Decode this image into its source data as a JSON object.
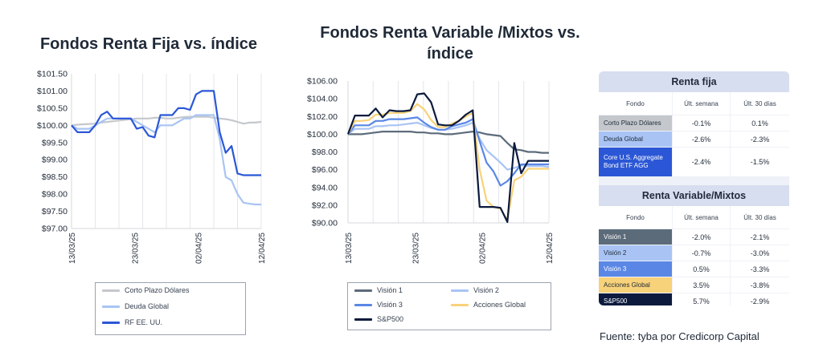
{
  "chart_data": [
    {
      "type": "line",
      "title": "Fondos Renta Fija vs. índice",
      "ylim": [
        97.0,
        101.5
      ],
      "yticks": [
        "$101.50",
        "$101.00",
        "$100.50",
        "$100.00",
        "$99.50",
        "$99.00",
        "$98.50",
        "$98.00",
        "$97.50",
        "$97.00"
      ],
      "xticks": [
        "13/03/25",
        "23/03/25",
        "02/04/25",
        "12/04/25"
      ],
      "grid": "vertical",
      "legend_position": "bottom",
      "series": [
        {
          "name": "Corto Plazo Dólares",
          "color": "#c4c8cd",
          "values": [
            100.0,
            100.02,
            100.03,
            100.04,
            100.05,
            100.08,
            100.1,
            100.12,
            100.14,
            100.16,
            100.18,
            100.2,
            100.2,
            100.2,
            100.22,
            100.22,
            100.2,
            100.2,
            100.22,
            100.24,
            100.25,
            100.25,
            100.25,
            100.25,
            100.22,
            100.2,
            100.18,
            100.15,
            100.1,
            100.05,
            100.08,
            100.08,
            100.1
          ]
        },
        {
          "name": "Deuda Global",
          "color": "#a9c4f4",
          "values": [
            100.0,
            99.9,
            99.9,
            99.9,
            100.0,
            100.1,
            100.2,
            100.2,
            100.2,
            100.2,
            100.2,
            100.1,
            100.0,
            99.9,
            99.8,
            100.0,
            100.0,
            100.0,
            100.1,
            100.2,
            100.2,
            100.3,
            100.3,
            100.3,
            100.3,
            99.6,
            98.5,
            98.4,
            98.0,
            97.75,
            97.72,
            97.7,
            97.7
          ]
        },
        {
          "name": "RF EE. UU.",
          "color": "#2b57d6",
          "values": [
            100.0,
            99.8,
            99.8,
            99.8,
            100.0,
            100.3,
            100.4,
            100.2,
            100.2,
            100.2,
            100.2,
            99.9,
            99.95,
            99.7,
            99.65,
            100.3,
            100.3,
            100.3,
            100.5,
            100.5,
            100.45,
            100.9,
            101.0,
            101.0,
            101.0,
            99.8,
            99.2,
            99.4,
            98.6,
            98.55,
            98.55,
            98.55,
            98.55
          ]
        }
      ]
    },
    {
      "type": "line",
      "title": "Fondos Renta Variable /Mixtos vs. índice",
      "ylim": [
        90.0,
        106.0
      ],
      "yticks": [
        "$106.00",
        "$104.00",
        "$102.00",
        "$100.00",
        "$98.00",
        "$96.00",
        "$94.00",
        "$92.00",
        "$90.00"
      ],
      "xticks": [
        "13/03/25",
        "23/03/25",
        "02/04/25",
        "12/04/25"
      ],
      "grid": "vertical",
      "legend_position": "bottom",
      "series": [
        {
          "name": "Visión 1",
          "color": "#5c6b7a",
          "values": [
            100.0,
            100.0,
            100.0,
            100.1,
            100.2,
            100.3,
            100.3,
            100.3,
            100.3,
            100.3,
            100.2,
            100.2,
            100.1,
            100.1,
            100.0,
            100.0,
            100.1,
            100.2,
            100.3,
            100.2,
            100.0,
            99.9,
            99.8,
            99.0,
            98.3,
            98.2,
            98.0,
            98.0,
            97.9,
            97.9
          ]
        },
        {
          "name": "Visión 2",
          "color": "#a9c4f4",
          "values": [
            100.0,
            100.6,
            100.6,
            100.6,
            100.9,
            100.9,
            101.0,
            101.0,
            101.1,
            101.2,
            101.3,
            101.0,
            100.7,
            100.5,
            100.5,
            100.6,
            100.8,
            101.0,
            101.3,
            99.5,
            98.2,
            97.5,
            96.8,
            96.0,
            96.2,
            96.5,
            96.4,
            96.4,
            96.4,
            96.3
          ]
        },
        {
          "name": "Visión 3",
          "color": "#5a87e6",
          "values": [
            100.0,
            101.0,
            101.0,
            101.0,
            101.5,
            101.5,
            101.7,
            101.7,
            101.7,
            101.8,
            101.9,
            101.3,
            100.8,
            100.5,
            100.5,
            100.9,
            101.1,
            101.3,
            101.7,
            99.2,
            96.8,
            95.8,
            94.2,
            94.7,
            95.6,
            96.6,
            96.6,
            96.6,
            96.6,
            96.6
          ]
        },
        {
          "name": "Acciones Global",
          "color": "#f8d27a",
          "values": [
            100.0,
            101.5,
            101.5,
            101.6,
            102.2,
            102.2,
            102.4,
            102.4,
            102.4,
            102.6,
            103.4,
            102.8,
            101.6,
            100.8,
            100.8,
            101.2,
            101.5,
            102.0,
            102.4,
            96.0,
            92.5,
            91.8,
            91.6,
            90.3,
            94.8,
            95.2,
            96.1,
            96.1,
            96.1,
            96.1
          ]
        },
        {
          "name": "S&P500",
          "color": "#0b1a3d",
          "values": [
            100.0,
            102.1,
            102.1,
            102.1,
            102.9,
            101.9,
            102.7,
            102.6,
            102.6,
            102.7,
            104.5,
            104.6,
            103.6,
            101.1,
            101.0,
            101.0,
            101.5,
            102.2,
            102.7,
            91.8,
            91.8,
            91.8,
            91.7,
            90.1,
            99.0,
            95.6,
            97.0,
            97.0,
            97.0,
            97.0
          ]
        }
      ]
    }
  ],
  "table": {
    "renta_fija_header": "Renta fija",
    "renta_variable_header": "Renta Variable/Mixtos",
    "col_fondo": "Fondo",
    "col_week": "Últ. semana",
    "col_30": "Últ. 30 días",
    "renta_fija_rows": [
      {
        "fund": "Corto Plazo Dólares",
        "week": "-0.1%",
        "d30": "0.1%",
        "color": "#c4c8cd",
        "text_color": "#1f2937"
      },
      {
        "fund": "Deuda Global",
        "week": "-2.6%",
        "d30": "-2.3%",
        "color": "#a9c4f4",
        "text_color": "#1f2937"
      },
      {
        "fund": "Core U.S. Aggregate Bond ETF AGG",
        "week": "-2.4%",
        "d30": "-1.5%",
        "color": "#2b57d6",
        "text_color": "#ffffff"
      }
    ],
    "renta_variable_rows": [
      {
        "fund": "Visión 1",
        "week": "-2.0%",
        "d30": "-2.1%",
        "color": "#5c6b7a",
        "text_color": "#ffffff"
      },
      {
        "fund": "Visión 2",
        "week": "-0.7%",
        "d30": "-3.0%",
        "color": "#a9c4f4",
        "text_color": "#1f2937"
      },
      {
        "fund": "Visión 3",
        "week": "0.5%",
        "d30": "-3.3%",
        "color": "#5a87e6",
        "text_color": "#ffffff"
      },
      {
        "fund": "Acciones Global",
        "week": "3.5%",
        "d30": "-3.8%",
        "color": "#f8d27a",
        "text_color": "#1f2937"
      },
      {
        "fund": "S&P500",
        "week": "5.7%",
        "d30": "-2.9%",
        "color": "#0b1a3d",
        "text_color": "#ffffff"
      }
    ]
  },
  "source": "Fuente: tyba por Credicorp Capital"
}
